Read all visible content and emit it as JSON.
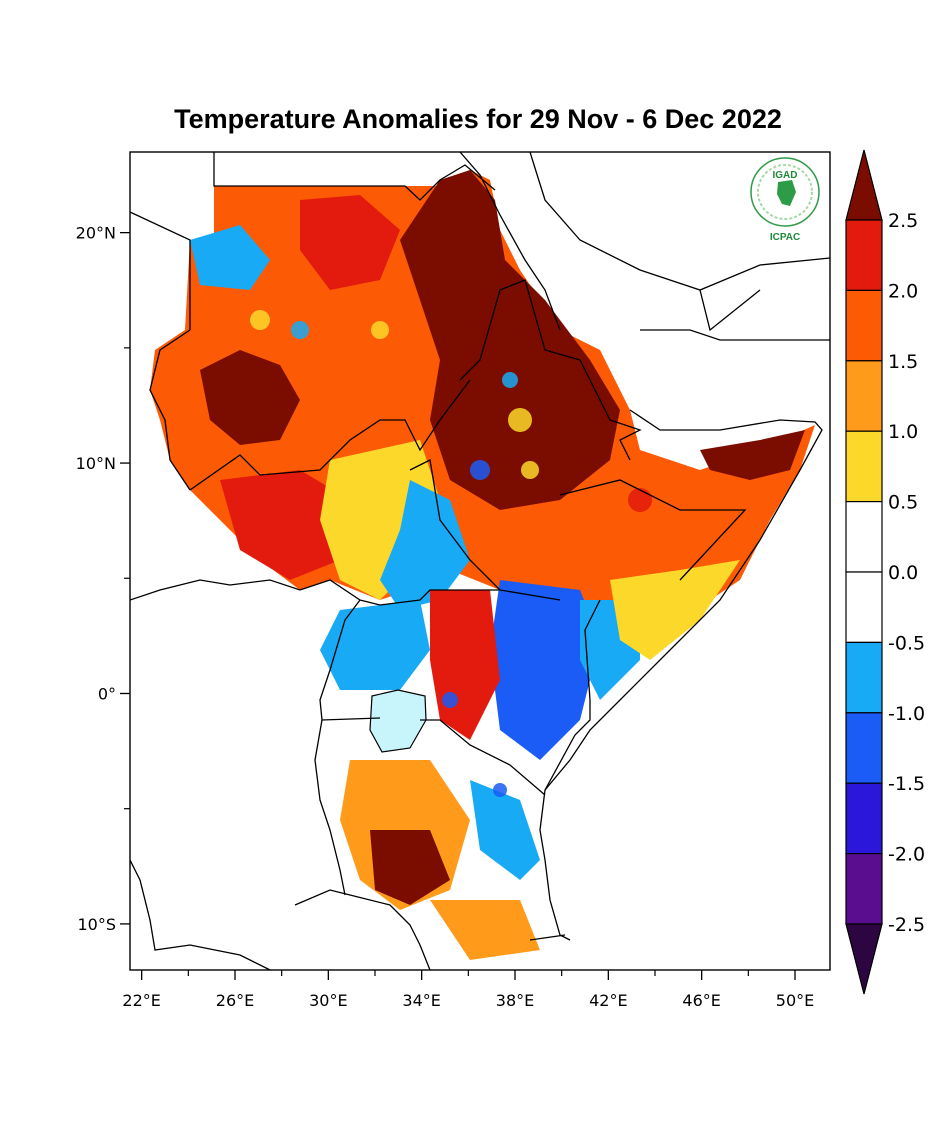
{
  "title": "Temperature Anomalies for 29 Nov - 6 Dec 2022",
  "logo": {
    "top_text": "IGAD",
    "bottom_text": "ICPAC"
  },
  "axes": {
    "y_ticks": [
      {
        "label": "20°N",
        "value": 20
      },
      {
        "label": "10°N",
        "value": 10
      },
      {
        "label": "0°",
        "value": 0
      },
      {
        "label": "10°S",
        "value": -10
      }
    ],
    "x_ticks": [
      {
        "label": "22°E",
        "value": 22
      },
      {
        "label": "26°E",
        "value": 26
      },
      {
        "label": "30°E",
        "value": 30
      },
      {
        "label": "34°E",
        "value": 34
      },
      {
        "label": "38°E",
        "value": 38
      },
      {
        "label": "42°E",
        "value": 42
      },
      {
        "label": "46°E",
        "value": 46
      },
      {
        "label": "50°E",
        "value": 50
      }
    ],
    "lon_range": [
      21.5,
      51.5
    ],
    "lat_range": [
      -12,
      23.5
    ]
  },
  "colorbar": {
    "levels": [
      "2.5",
      "2.0",
      "1.5",
      "1.0",
      "0.5",
      "0.0",
      "-0.5",
      "-1.0",
      "-1.5",
      "-2.0",
      "-2.5"
    ],
    "colors": [
      "#7a0d00",
      "#e31a0e",
      "#fc5a05",
      "#ff9a1a",
      "#fcd82a",
      "#ffffff",
      "#ffffff",
      "#19aaf5",
      "#1a5cf5",
      "#2a17d9",
      "#5a0d8f",
      "#2d0540"
    ]
  },
  "anomaly_colors": {
    "very_hot": "#7a0d00",
    "hot": "#e31a0e",
    "warm": "#fc5a05",
    "mild": "#ff9a1a",
    "slight": "#fcd82a",
    "neutral": "#ffffff",
    "cool": "#19aaf5",
    "cold": "#1a5cf5",
    "lake": "#c8f4fb"
  }
}
